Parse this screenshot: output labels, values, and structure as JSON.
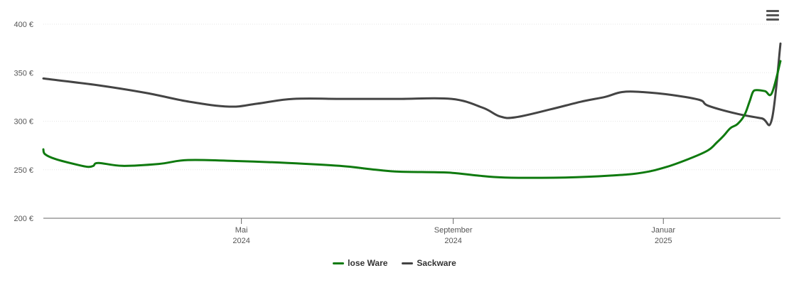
{
  "chart_data": {
    "type": "line",
    "title": "",
    "xlabel": "",
    "ylabel": "",
    "xlim": [
      "2024-01-07",
      "2025-03-10"
    ],
    "ylim": [
      200,
      400
    ],
    "y_ticks": [
      200,
      250,
      300,
      350,
      400
    ],
    "y_tick_labels": [
      "200 €",
      "250 €",
      "300 €",
      "350 €",
      "400 €"
    ],
    "x_ticks": [
      {
        "date": "2024-05-01",
        "label_line1": "Mai",
        "label_line2": "2024"
      },
      {
        "date": "2024-09-01",
        "label_line1": "September",
        "label_line2": "2024"
      },
      {
        "date": "2025-01-01",
        "label_line1": "Januar",
        "label_line2": "2025"
      }
    ],
    "grid": true,
    "legend_position": "bottom-center",
    "series": [
      {
        "name": "lose Ware",
        "color": "#0f7a0f",
        "points": [
          [
            "2024-01-07",
            271
          ],
          [
            "2024-01-08",
            266
          ],
          [
            "2024-01-14",
            261
          ],
          [
            "2024-01-27",
            255
          ],
          [
            "2024-02-02",
            253
          ],
          [
            "2024-02-05",
            254
          ],
          [
            "2024-02-08",
            257
          ],
          [
            "2024-02-22",
            254
          ],
          [
            "2024-03-14",
            256
          ],
          [
            "2024-03-31",
            260
          ],
          [
            "2024-04-28",
            259
          ],
          [
            "2024-05-28",
            257
          ],
          [
            "2024-06-27",
            254
          ],
          [
            "2024-07-18",
            250
          ],
          [
            "2024-08-01",
            248
          ],
          [
            "2024-08-29",
            247
          ],
          [
            "2024-09-15",
            244
          ],
          [
            "2024-10-01",
            242
          ],
          [
            "2024-11-05",
            242
          ],
          [
            "2024-12-02",
            244
          ],
          [
            "2024-12-20",
            247
          ],
          [
            "2025-01-03",
            253
          ],
          [
            "2025-01-17",
            262
          ],
          [
            "2025-01-27",
            270
          ],
          [
            "2025-02-01",
            278
          ],
          [
            "2025-02-05",
            285
          ],
          [
            "2025-02-09",
            293
          ],
          [
            "2025-02-13",
            297
          ],
          [
            "2025-02-17",
            306
          ],
          [
            "2025-02-20",
            320
          ],
          [
            "2025-02-22",
            330
          ],
          [
            "2025-02-24",
            332
          ],
          [
            "2025-03-01",
            331
          ],
          [
            "2025-03-05",
            329
          ],
          [
            "2025-03-10",
            362
          ]
        ]
      },
      {
        "name": "Sackware",
        "color": "#444444",
        "points": [
          [
            "2024-01-07",
            344
          ],
          [
            "2024-02-08",
            337
          ],
          [
            "2024-03-07",
            329
          ],
          [
            "2024-04-01",
            320
          ],
          [
            "2024-04-24",
            315
          ],
          [
            "2024-05-10",
            318
          ],
          [
            "2024-05-31",
            323
          ],
          [
            "2024-06-30",
            323
          ],
          [
            "2024-07-31",
            323
          ],
          [
            "2024-08-31",
            323
          ],
          [
            "2024-09-18",
            314
          ],
          [
            "2024-09-28",
            305
          ],
          [
            "2024-10-07",
            304
          ],
          [
            "2024-10-27",
            312
          ],
          [
            "2024-11-14",
            320
          ],
          [
            "2024-11-28",
            325
          ],
          [
            "2024-12-08",
            330
          ],
          [
            "2024-12-20",
            330
          ],
          [
            "2025-01-06",
            327
          ],
          [
            "2025-01-22",
            322
          ],
          [
            "2025-01-27",
            316
          ],
          [
            "2025-02-12",
            308
          ],
          [
            "2025-02-27",
            303
          ],
          [
            "2025-03-05",
            302
          ],
          [
            "2025-03-10",
            380
          ]
        ]
      }
    ]
  },
  "icons": {
    "menu": "hamburger-menu-icon"
  }
}
